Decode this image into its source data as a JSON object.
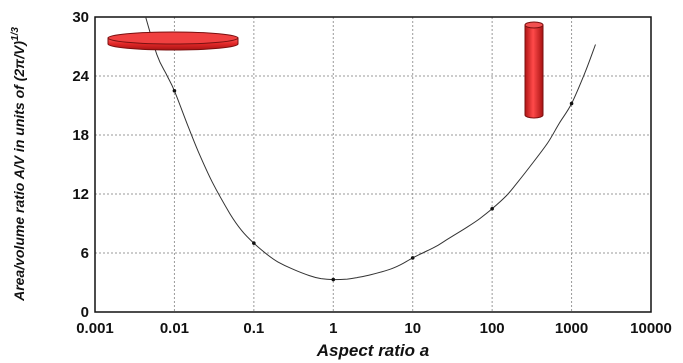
{
  "chart_data": {
    "type": "line",
    "title": "",
    "xlabel": "Aspect ratio a",
    "ylabel_main": "Area/volume ratio A/V in units of (2π/V)",
    "ylabel_superscript": "1/3",
    "x_scale": "log",
    "xlim": [
      0.001,
      10000
    ],
    "ylim": [
      0,
      30
    ],
    "x_ticks": [
      0.001,
      0.01,
      0.1,
      1,
      10,
      100,
      1000,
      10000
    ],
    "x_tick_labels": [
      "0.001",
      "0.01",
      "0.1",
      "1",
      "10",
      "100",
      "1000",
      "10000"
    ],
    "y_ticks": [
      0,
      6,
      12,
      18,
      24,
      30
    ],
    "y_tick_labels": [
      "0",
      "6",
      "12",
      "18",
      "24",
      "30"
    ],
    "grid": true,
    "series": [
      {
        "x": [
          0.004,
          0.006,
          0.008,
          0.01,
          0.015,
          0.02,
          0.03,
          0.05,
          0.07,
          0.1,
          0.15,
          0.2,
          0.3,
          0.5,
          0.7,
          1,
          1.5,
          2,
          3,
          5,
          7,
          10,
          15,
          20,
          30,
          50,
          70,
          100,
          150,
          200,
          300,
          500,
          700,
          1000,
          1500,
          2000
        ],
        "y": [
          31,
          26.2,
          24.1,
          22.5,
          18.8,
          16.3,
          13.2,
          10.0,
          8.3,
          7.0,
          5.8,
          5.1,
          4.4,
          3.7,
          3.4,
          3.3,
          3.35,
          3.5,
          3.8,
          4.3,
          4.8,
          5.5,
          6.2,
          6.7,
          7.6,
          8.7,
          9.5,
          10.5,
          11.8,
          13.0,
          14.8,
          17.2,
          19.2,
          21.2,
          24.5,
          27.2
        ],
        "marker_x": [
          0.01,
          0.1,
          1,
          10,
          100,
          1000
        ],
        "marker_y": [
          22.5,
          7.0,
          3.3,
          5.5,
          10.5,
          21.2
        ],
        "color": "#333333"
      }
    ],
    "illustrations": {
      "disk_color": "#e53030",
      "rod_color": "#e53030",
      "outline_color": "#7a1010"
    }
  }
}
